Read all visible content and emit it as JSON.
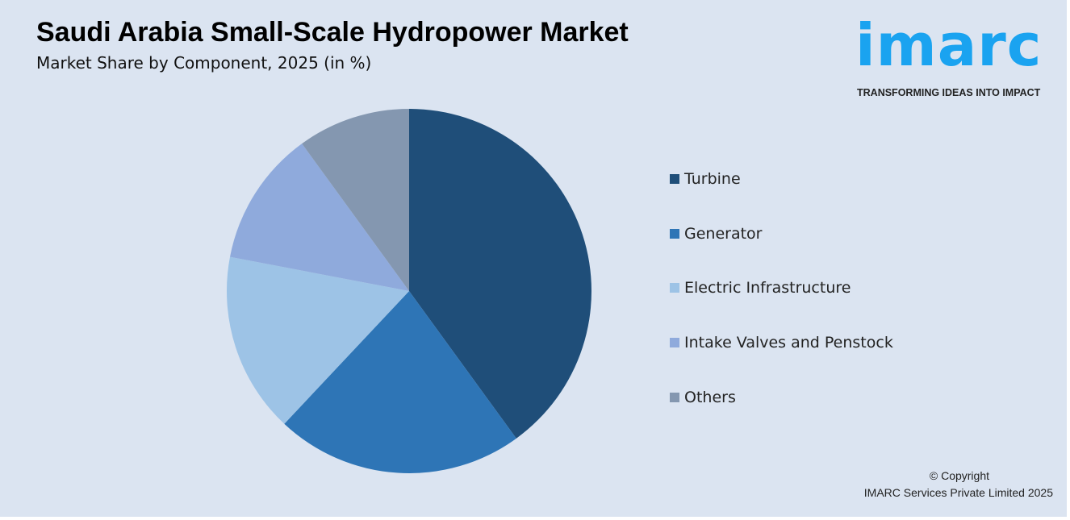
{
  "header": {
    "title": "Saudi Arabia Small-Scale Hydropower Market",
    "subtitle": "Market Share by Component, 2025 (in %)"
  },
  "logo": {
    "text": "imarc",
    "tagline": "TRANSFORMING IDEAS INTO IMPACT"
  },
  "footer": {
    "copyright": "© Copyright",
    "company": "IMARC Services Private Limited 2025"
  },
  "chart_data": {
    "type": "pie",
    "title": "Saudi Arabia Small-Scale Hydropower Market",
    "subtitle": "Market Share by Component, 2025 (in %)",
    "legend_position": "right",
    "categories": [
      "Turbine",
      "Generator",
      "Electric Infrastructure",
      "Intake Valves and Penstock",
      "Others"
    ],
    "values": [
      40,
      22,
      16,
      12,
      10
    ],
    "colors": [
      "#1f4e79",
      "#2e75b6",
      "#9dc3e6",
      "#8faadc",
      "#8497b0"
    ]
  }
}
